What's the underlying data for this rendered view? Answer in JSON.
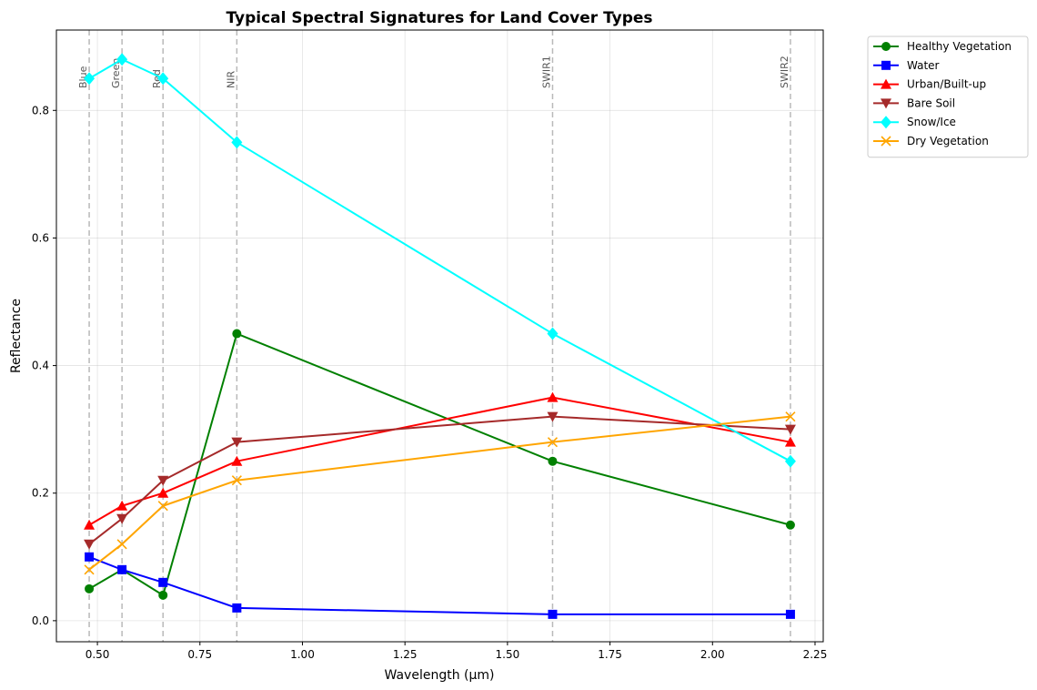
{
  "chart_data": {
    "type": "line",
    "title": "Typical Spectral Signatures for Land Cover Types",
    "xlabel": "Wavelength (μm)",
    "ylabel": "Reflectance",
    "xlim": [
      0.4,
      2.27
    ],
    "ylim": [
      -0.033,
      0.926
    ],
    "grid": true,
    "legend_position": "outside-top-right",
    "x": [
      0.48,
      0.56,
      0.66,
      0.84,
      1.61,
      2.19
    ],
    "xticks": [
      0.5,
      0.75,
      1.0,
      1.25,
      1.5,
      1.75,
      2.0,
      2.25
    ],
    "xtick_labels": [
      "0.50",
      "0.75",
      "1.00",
      "1.25",
      "1.50",
      "1.75",
      "2.00",
      "2.25"
    ],
    "yticks": [
      0.0,
      0.2,
      0.4,
      0.6,
      0.8
    ],
    "ytick_labels": [
      "0.0",
      "0.2",
      "0.4",
      "0.6",
      "0.8"
    ],
    "bands": [
      {
        "name": "Blue",
        "x": 0.48
      },
      {
        "name": "Green",
        "x": 0.56
      },
      {
        "name": "Red",
        "x": 0.66
      },
      {
        "name": "NIR",
        "x": 0.84
      },
      {
        "name": "SWIR1",
        "x": 1.61
      },
      {
        "name": "SWIR2",
        "x": 2.19
      }
    ],
    "series": [
      {
        "name": "Healthy Vegetation",
        "color": "#008000",
        "marker": "circle",
        "values": [
          0.05,
          0.08,
          0.04,
          0.45,
          0.25,
          0.15
        ]
      },
      {
        "name": "Water",
        "color": "#0000ff",
        "marker": "square",
        "values": [
          0.1,
          0.08,
          0.06,
          0.02,
          0.01,
          0.01
        ]
      },
      {
        "name": "Urban/Built-up",
        "color": "#ff0000",
        "marker": "triangle-up",
        "values": [
          0.15,
          0.18,
          0.2,
          0.25,
          0.35,
          0.28
        ]
      },
      {
        "name": "Bare Soil",
        "color": "#a52a2a",
        "marker": "triangle-down",
        "values": [
          0.12,
          0.16,
          0.22,
          0.28,
          0.32,
          0.3
        ]
      },
      {
        "name": "Snow/Ice",
        "color": "#00ffff",
        "marker": "diamond",
        "values": [
          0.85,
          0.88,
          0.85,
          0.75,
          0.45,
          0.25
        ]
      },
      {
        "name": "Dry Vegetation",
        "color": "#ffa500",
        "marker": "x",
        "values": [
          0.08,
          0.12,
          0.18,
          0.22,
          0.28,
          0.32
        ]
      }
    ]
  }
}
